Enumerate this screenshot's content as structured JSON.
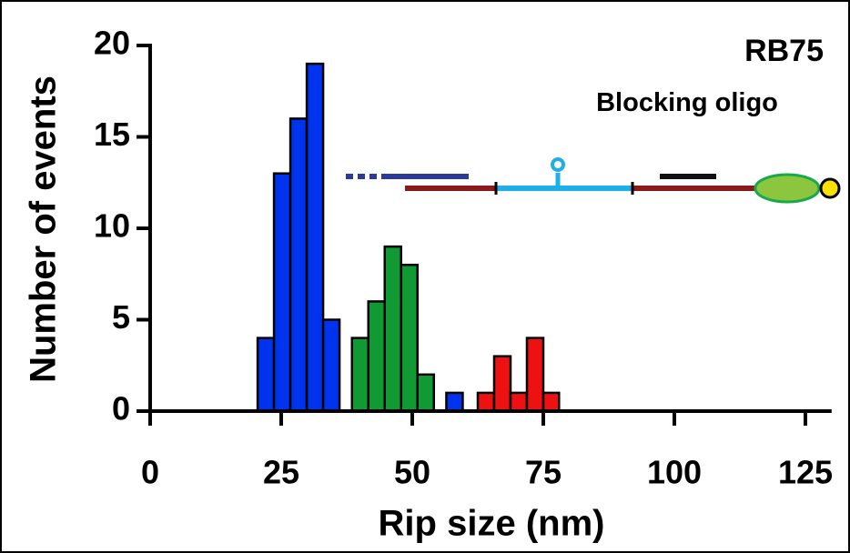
{
  "chart_data": {
    "type": "histogram",
    "xlabel": "Rip size (nm)",
    "ylabel": "Number of events",
    "annotations": [
      "RB75",
      "Blocking oligo"
    ],
    "xlim": [
      0,
      130
    ],
    "xticks": [
      0,
      25,
      50,
      75,
      100,
      125
    ],
    "ylim": [
      0,
      20
    ],
    "yticks": [
      0,
      5,
      10,
      15,
      20
    ],
    "series": [
      {
        "color": "#0033ee",
        "bins": [
          20.5,
          23.625,
          26.75,
          29.875,
          33,
          36.125
        ],
        "values": [
          4,
          13,
          16,
          19,
          5
        ]
      },
      {
        "color": "#119933",
        "bins": [
          38.5,
          41.625,
          44.75,
          47.875,
          51,
          54.125
        ],
        "values": [
          4,
          6,
          9,
          8,
          2
        ]
      },
      {
        "color": "#0033ee",
        "bins": [
          56.5,
          59.625
        ],
        "values": [
          1
        ]
      },
      {
        "color": "#ee1111",
        "bins": [
          62.5,
          65.625,
          68.75,
          71.875,
          75,
          78
        ],
        "values": [
          1,
          3,
          1,
          4,
          1
        ]
      }
    ]
  }
}
